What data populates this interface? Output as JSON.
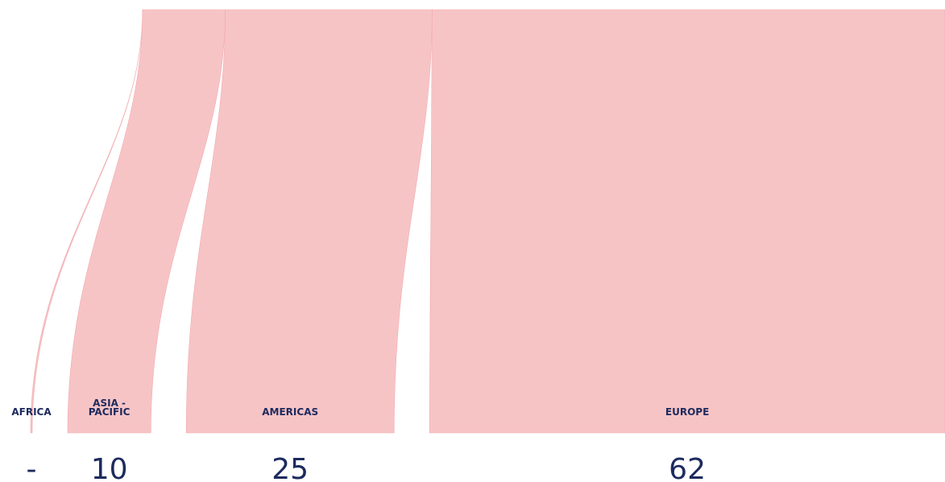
{
  "chart_data": {
    "type": "sankey",
    "colors": {
      "flow": "#f7c4c6",
      "flow_edge": "#f1aaae",
      "text": "#1c2a5e"
    },
    "regions": [
      {
        "label": "AFRICA",
        "label_lines": [
          "AFRICA"
        ],
        "value": 0,
        "value_text": "-"
      },
      {
        "label": "ASIA - PACIFIC",
        "label_lines": [
          "ASIA -",
          "PACIFIC"
        ],
        "value": 10,
        "value_text": "10"
      },
      {
        "label": "AMERICAS",
        "label_lines": [
          "AMERICAS"
        ],
        "value": 25,
        "value_text": "25"
      },
      {
        "label": "EUROPE",
        "label_lines": [
          "EUROPE"
        ],
        "value": 62,
        "value_text": "62"
      }
    ]
  }
}
